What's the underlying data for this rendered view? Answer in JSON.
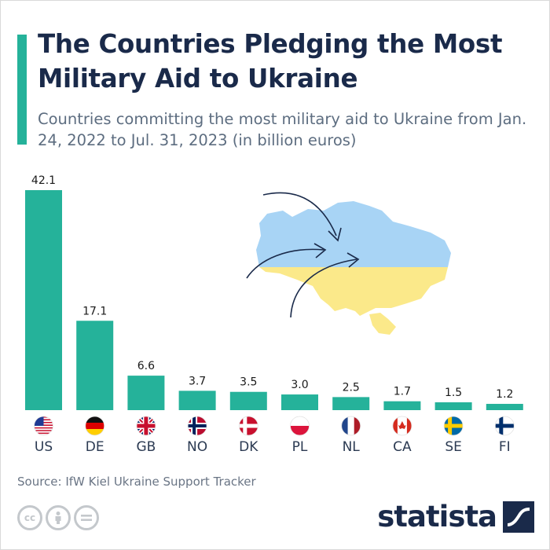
{
  "title": "The Countries Pledging the Most Military Aid to Ukraine",
  "subtitle": "Countries committing the most military aid to Ukraine from Jan. 24, 2022 to Jul. 31, 2023 (in billion euros)",
  "source": "Source: IfW Kiel Ukraine Support Tracker",
  "brand": "statista",
  "license_icons": [
    "cc-icon",
    "attribution-icon",
    "no-derivatives-icon"
  ],
  "colors": {
    "bar": "#25b29a",
    "title": "#1a2a4a",
    "subtitle": "#5d6d80",
    "ukraine_blue": "#a8d4f5",
    "ukraine_yellow": "#fbe98a"
  },
  "chart_data": {
    "type": "bar",
    "categories": [
      "US",
      "DE",
      "GB",
      "NO",
      "DK",
      "PL",
      "NL",
      "CA",
      "SE",
      "FI"
    ],
    "values": [
      42.1,
      17.1,
      6.6,
      3.7,
      3.5,
      3.0,
      2.5,
      1.7,
      1.5,
      1.2
    ],
    "value_labels": [
      "42.1",
      "17.1",
      "6.6",
      "3.7",
      "3.5",
      "3.0",
      "2.5",
      "1.7",
      "1.5",
      "1.2"
    ],
    "flags": [
      "us-flag-icon",
      "de-flag-icon",
      "gb-flag-icon",
      "no-flag-icon",
      "dk-flag-icon",
      "pl-flag-icon",
      "nl-flag-icon",
      "ca-flag-icon",
      "se-flag-icon",
      "fi-flag-icon"
    ],
    "ylim": [
      0,
      42.1
    ],
    "grid": false,
    "legend": "none",
    "xlabel": "",
    "ylabel": ""
  }
}
